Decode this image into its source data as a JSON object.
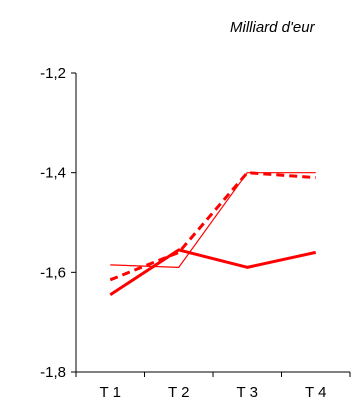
{
  "chart_data": {
    "type": "line",
    "unit_label": "Milliard d'eur",
    "categories": [
      "T 1",
      "T 2",
      "T 3",
      "T 4"
    ],
    "ylim": [
      -1.8,
      -1.2
    ],
    "yticks": [
      -1.2,
      -1.4,
      -1.6,
      -1.8
    ],
    "ytick_labels": [
      "-1,2",
      "-1,4",
      "-1,6",
      "-1,8"
    ],
    "grid": false,
    "legend": "none",
    "series": [
      {
        "style": "solid-thick",
        "color": "#ff0000",
        "values": [
          -1.645,
          -1.555,
          -1.59,
          -1.56
        ]
      },
      {
        "style": "dashed",
        "color": "#ff0000",
        "values": [
          -1.615,
          -1.56,
          -1.4,
          -1.41
        ]
      },
      {
        "style": "solid-thin",
        "color": "#ff0000",
        "values": [
          -1.585,
          -1.59,
          -1.4,
          -1.4
        ]
      }
    ]
  }
}
